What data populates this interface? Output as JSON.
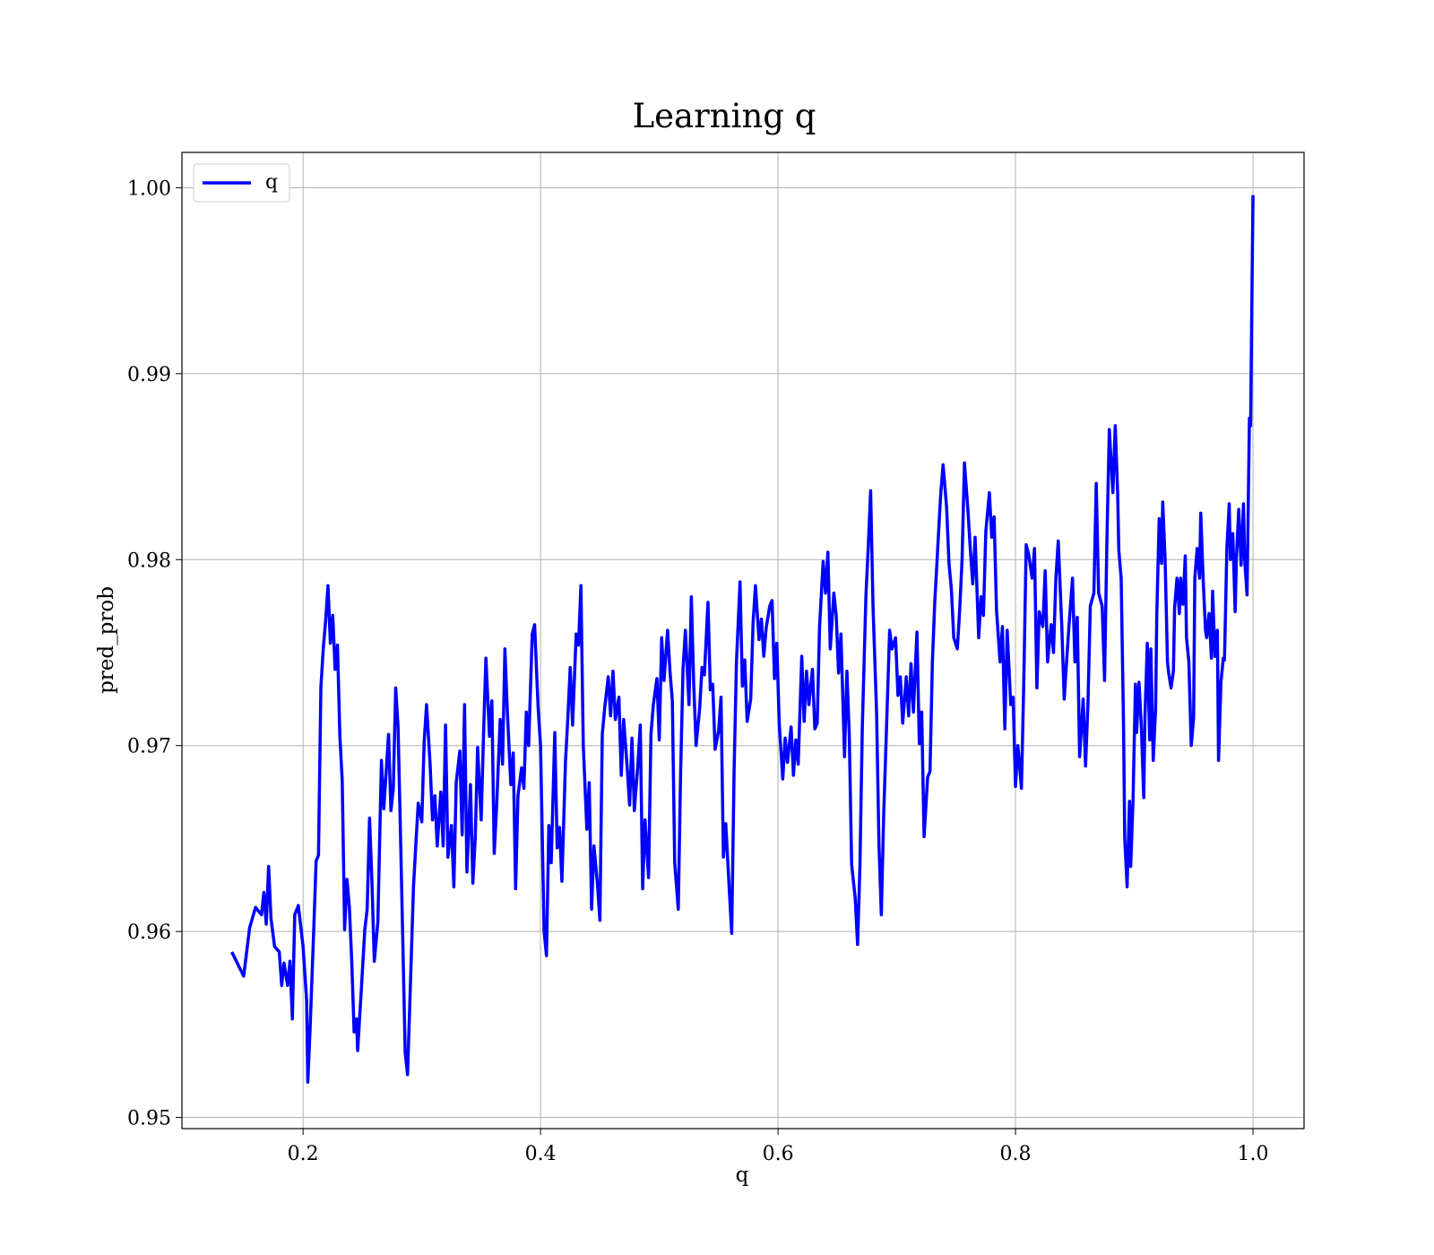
{
  "chart_data": {
    "type": "line",
    "title": "Learning q",
    "xlabel": "q",
    "ylabel": "pred_prob",
    "legend": "upper left",
    "grid": true,
    "xlim": [
      0.098,
      1.043
    ],
    "ylim": [
      0.9494,
      1.0019
    ],
    "xticks": [
      0.2,
      0.4,
      0.6,
      0.8,
      {
        "value": 1.0,
        "label": "1.0"
      }
    ],
    "yticks": [
      0.95,
      0.96,
      0.97,
      0.98,
      0.99,
      {
        "value": 1.0,
        "label": "1.00"
      }
    ],
    "x": [
      0.14,
      0.15,
      0.155,
      0.16,
      0.165,
      0.167,
      0.169,
      0.171,
      0.173,
      0.176,
      0.18,
      0.182,
      0.184,
      0.187,
      0.189,
      0.191,
      0.193,
      0.196,
      0.2,
      0.203,
      0.204,
      0.206,
      0.209,
      0.211,
      0.213,
      0.215,
      0.217,
      0.219,
      0.221,
      0.223,
      0.225,
      0.227,
      0.229,
      0.231,
      0.233,
      0.235,
      0.237,
      0.239,
      0.241,
      0.243,
      0.245,
      0.246,
      0.249,
      0.252,
      0.254,
      0.256,
      0.258,
      0.26,
      0.263,
      0.266,
      0.268,
      0.27,
      0.272,
      0.274,
      0.276,
      0.278,
      0.28,
      0.282,
      0.284,
      0.286,
      0.288,
      0.29,
      0.293,
      0.295,
      0.297,
      0.3,
      0.302,
      0.304,
      0.307,
      0.309,
      0.311,
      0.313,
      0.316,
      0.318,
      0.32,
      0.322,
      0.325,
      0.327,
      0.329,
      0.332,
      0.334,
      0.336,
      0.338,
      0.341,
      0.343,
      0.345,
      0.347,
      0.35,
      0.352,
      0.354,
      0.357,
      0.359,
      0.361,
      0.363,
      0.366,
      0.368,
      0.37,
      0.372,
      0.375,
      0.377,
      0.379,
      0.381,
      0.384,
      0.386,
      0.388,
      0.39,
      0.393,
      0.395,
      0.398,
      0.4,
      0.403,
      0.405,
      0.407,
      0.409,
      0.412,
      0.414,
      0.416,
      0.418,
      0.421,
      0.423,
      0.425,
      0.427,
      0.43,
      0.432,
      0.434,
      0.436,
      0.439,
      0.441,
      0.443,
      0.445,
      0.448,
      0.45,
      0.452,
      0.454,
      0.457,
      0.459,
      0.461,
      0.463,
      0.466,
      0.468,
      0.47,
      0.473,
      0.475,
      0.477,
      0.479,
      0.482,
      0.484,
      0.486,
      0.488,
      0.491,
      0.493,
      0.495,
      0.498,
      0.5,
      0.502,
      0.504,
      0.507,
      0.509,
      0.511,
      0.513,
      0.516,
      0.518,
      0.52,
      0.522,
      0.525,
      0.527,
      0.529,
      0.531,
      0.534,
      0.536,
      0.538,
      0.541,
      0.543,
      0.545,
      0.547,
      0.55,
      0.552,
      0.554,
      0.556,
      0.559,
      0.561,
      0.563,
      0.565,
      0.568,
      0.57,
      0.572,
      0.574,
      0.577,
      0.579,
      0.581,
      0.584,
      0.586,
      0.588,
      0.59,
      0.593,
      0.595,
      0.597,
      0.599,
      0.601,
      0.604,
      0.606,
      0.608,
      0.611,
      0.613,
      0.615,
      0.617,
      0.62,
      0.622,
      0.624,
      0.626,
      0.629,
      0.631,
      0.633,
      0.635,
      0.638,
      0.64,
      0.642,
      0.644,
      0.647,
      0.649,
      0.651,
      0.653,
      0.656,
      0.658,
      0.66,
      0.662,
      0.665,
      0.667,
      0.669,
      0.671,
      0.674,
      0.676,
      0.678,
      0.68,
      0.683,
      0.685,
      0.687,
      0.689,
      0.692,
      0.694,
      0.696,
      0.699,
      0.701,
      0.703,
      0.705,
      0.708,
      0.71,
      0.712,
      0.714,
      0.717,
      0.719,
      0.721,
      0.723,
      0.726,
      0.728,
      0.73,
      0.732,
      0.735,
      0.737,
      0.739,
      0.742,
      0.744,
      0.746,
      0.748,
      0.751,
      0.753,
      0.755,
      0.757,
      0.76,
      0.762,
      0.764,
      0.766,
      0.769,
      0.771,
      0.773,
      0.775,
      0.778,
      0.78,
      0.782,
      0.784,
      0.787,
      0.789,
      0.791,
      0.793,
      0.796,
      0.798,
      0.8,
      0.802,
      0.805,
      0.807,
      0.809,
      0.811,
      0.814,
      0.816,
      0.818,
      0.82,
      0.823,
      0.825,
      0.827,
      0.83,
      0.832,
      0.834,
      0.836,
      0.839,
      0.841,
      0.843,
      0.845,
      0.848,
      0.85,
      0.852,
      0.854,
      0.857,
      0.859,
      0.861,
      0.863,
      0.866,
      0.868,
      0.87,
      0.873,
      0.875,
      0.877,
      0.879,
      0.882,
      0.884,
      0.886,
      0.887,
      0.889,
      0.891,
      0.892,
      0.894,
      0.896,
      0.897,
      0.899,
      0.901,
      0.902,
      0.904,
      0.906,
      0.908,
      0.909,
      0.911,
      0.913,
      0.914,
      0.916,
      0.918,
      0.919,
      0.921,
      0.923,
      0.924,
      0.926,
      0.928,
      0.929,
      0.931,
      0.933,
      0.934,
      0.936,
      0.938,
      0.939,
      0.941,
      0.943,
      0.944,
      0.946,
      0.948,
      0.95,
      0.951,
      0.953,
      0.955,
      0.956,
      0.958,
      0.96,
      0.961,
      0.963,
      0.965,
      0.966,
      0.968,
      0.97,
      0.971,
      0.973,
      0.975,
      0.976,
      0.978,
      0.98,
      0.981,
      0.983,
      0.985,
      0.986,
      0.988,
      0.99,
      0.992,
      0.993,
      0.995,
      0.997,
      0.998,
      1.0
    ],
    "series": [
      {
        "name": "q",
        "color": "#0000ff",
        "values": [
          0.9589,
          0.9576,
          0.9602,
          0.9613,
          0.9609,
          0.9621,
          0.9604,
          0.9635,
          0.9607,
          0.9592,
          0.9589,
          0.9571,
          0.9583,
          0.9571,
          0.9584,
          0.9553,
          0.9609,
          0.9614,
          0.9592,
          0.9563,
          0.9519,
          0.9549,
          0.9601,
          0.9638,
          0.9641,
          0.9731,
          0.9752,
          0.9767,
          0.9786,
          0.9755,
          0.977,
          0.9741,
          0.9754,
          0.9705,
          0.9681,
          0.9601,
          0.9628,
          0.9613,
          0.9584,
          0.9546,
          0.9553,
          0.9536,
          0.9568,
          0.9601,
          0.9612,
          0.9661,
          0.9627,
          0.9584,
          0.9605,
          0.9692,
          0.9666,
          0.9686,
          0.9706,
          0.9665,
          0.9677,
          0.9731,
          0.971,
          0.9654,
          0.9595,
          0.9535,
          0.9523,
          0.9563,
          0.9624,
          0.9647,
          0.9669,
          0.9659,
          0.9702,
          0.9722,
          0.969,
          0.966,
          0.9673,
          0.9646,
          0.9675,
          0.9646,
          0.9711,
          0.964,
          0.9657,
          0.9624,
          0.968,
          0.9697,
          0.9652,
          0.9722,
          0.9632,
          0.9679,
          0.9626,
          0.965,
          0.9699,
          0.966,
          0.9706,
          0.9747,
          0.9705,
          0.9724,
          0.9642,
          0.9667,
          0.9714,
          0.969,
          0.9752,
          0.9719,
          0.9679,
          0.9696,
          0.9623,
          0.9673,
          0.9688,
          0.9677,
          0.9718,
          0.97,
          0.976,
          0.9765,
          0.972,
          0.97,
          0.96,
          0.9587,
          0.9657,
          0.9637,
          0.9707,
          0.9645,
          0.9656,
          0.9627,
          0.9691,
          0.9715,
          0.9742,
          0.9711,
          0.976,
          0.9754,
          0.9786,
          0.97,
          0.9655,
          0.968,
          0.9612,
          0.9646,
          0.9625,
          0.9606,
          0.9706,
          0.972,
          0.9737,
          0.9716,
          0.974,
          0.9714,
          0.9726,
          0.9684,
          0.9714,
          0.9688,
          0.9668,
          0.9704,
          0.9665,
          0.969,
          0.9711,
          0.9623,
          0.966,
          0.9629,
          0.9706,
          0.9722,
          0.9736,
          0.9703,
          0.9758,
          0.9735,
          0.9762,
          0.974,
          0.9724,
          0.9637,
          0.9612,
          0.9686,
          0.9741,
          0.9762,
          0.9722,
          0.978,
          0.9733,
          0.97,
          0.972,
          0.9742,
          0.9738,
          0.9777,
          0.973,
          0.9733,
          0.9698,
          0.9708,
          0.9726,
          0.964,
          0.9658,
          0.9622,
          0.9599,
          0.9686,
          0.9745,
          0.9788,
          0.9732,
          0.9746,
          0.9713,
          0.9725,
          0.9766,
          0.9786,
          0.9757,
          0.9768,
          0.9748,
          0.9763,
          0.9775,
          0.9778,
          0.9736,
          0.9755,
          0.9712,
          0.9682,
          0.9704,
          0.9691,
          0.971,
          0.9684,
          0.9703,
          0.969,
          0.9748,
          0.9713,
          0.974,
          0.9722,
          0.9741,
          0.9709,
          0.9712,
          0.9764,
          0.9799,
          0.9782,
          0.9804,
          0.9752,
          0.9782,
          0.977,
          0.9739,
          0.976,
          0.9694,
          0.974,
          0.9706,
          0.9636,
          0.9618,
          0.9593,
          0.9636,
          0.971,
          0.978,
          0.9807,
          0.9837,
          0.9775,
          0.9718,
          0.9647,
          0.9609,
          0.9663,
          0.9722,
          0.9762,
          0.9752,
          0.9758,
          0.9727,
          0.9737,
          0.9712,
          0.9737,
          0.9716,
          0.9744,
          0.9718,
          0.9761,
          0.9701,
          0.9718,
          0.9651,
          0.9683,
          0.9686,
          0.9745,
          0.9777,
          0.9812,
          0.9835,
          0.9851,
          0.9828,
          0.9798,
          0.9784,
          0.9758,
          0.9752,
          0.9773,
          0.98,
          0.9852,
          0.9826,
          0.9805,
          0.9787,
          0.9812,
          0.9758,
          0.978,
          0.977,
          0.9815,
          0.9836,
          0.9812,
          0.9823,
          0.9773,
          0.9745,
          0.9764,
          0.9709,
          0.9762,
          0.9722,
          0.9726,
          0.9678,
          0.97,
          0.9677,
          0.9735,
          0.9808,
          0.9803,
          0.979,
          0.9806,
          0.9731,
          0.9772,
          0.9764,
          0.9794,
          0.9745,
          0.9765,
          0.975,
          0.979,
          0.981,
          0.9764,
          0.9725,
          0.9745,
          0.9764,
          0.979,
          0.9745,
          0.9769,
          0.9694,
          0.9725,
          0.9689,
          0.9722,
          0.9775,
          0.9782,
          0.9841,
          0.9782,
          0.9775,
          0.9735,
          0.9811,
          0.987,
          0.9836,
          0.9872,
          0.9836,
          0.9805,
          0.979,
          0.971,
          0.965,
          0.9624,
          0.967,
          0.9635,
          0.9671,
          0.9733,
          0.9707,
          0.9734,
          0.971,
          0.9672,
          0.9715,
          0.9755,
          0.9703,
          0.9752,
          0.9692,
          0.972,
          0.9771,
          0.9822,
          0.9798,
          0.9831,
          0.98,
          0.9745,
          0.9739,
          0.9731,
          0.974,
          0.9774,
          0.979,
          0.9771,
          0.979,
          0.9776,
          0.9802,
          0.9758,
          0.9745,
          0.97,
          0.9715,
          0.979,
          0.9806,
          0.979,
          0.9825,
          0.979,
          0.9762,
          0.9758,
          0.9771,
          0.9747,
          0.9783,
          0.9748,
          0.9762,
          0.9692,
          0.9734,
          0.9747,
          0.9746,
          0.9806,
          0.983,
          0.98,
          0.9814,
          0.9772,
          0.98,
          0.9827,
          0.9797,
          0.983,
          0.98,
          0.9781,
          0.9876,
          0.9872,
          0.9996
        ]
      }
    ]
  }
}
